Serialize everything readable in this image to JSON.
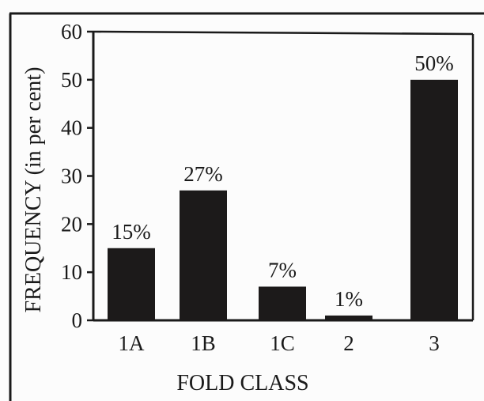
{
  "chart_data": {
    "type": "bar",
    "categories": [
      "1A",
      "1B",
      "1C",
      "2",
      "3"
    ],
    "values": [
      15,
      27,
      7,
      1,
      50
    ],
    "data_labels": [
      "15%",
      "27%",
      "7%",
      "1%",
      "50%"
    ],
    "title": "",
    "xlabel": "FOLD CLASS",
    "ylabel": "FREQUENCY (in per cent)",
    "ylim": [
      0,
      60
    ],
    "yticks": [
      0,
      10,
      20,
      30,
      40,
      50,
      60
    ],
    "grid": false,
    "legend": "none",
    "colors": {
      "bar": "#1c1a1a",
      "axis": "#1a1a1a",
      "frame": "#1a1a1a"
    }
  }
}
